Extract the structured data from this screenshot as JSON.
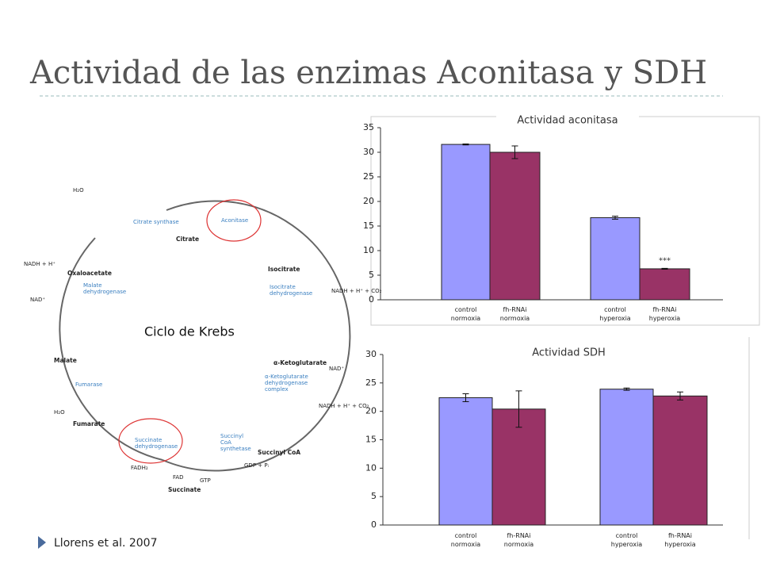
{
  "title": "Actividad de las enzimas Aconitasa y SDH",
  "citation": "Llorens et al. 2007",
  "diagram": {
    "title": "Ciclo de Krebs",
    "metabolites": [
      "Citrate",
      "Isocitrate",
      "α-Ketoglutarate",
      "Succinyl CoA",
      "Succinate",
      "Fumarate",
      "Malate",
      "Oxaloacetate"
    ],
    "enzymes": [
      "Citrate synthase",
      "Aconitase",
      "Isocitrate dehydrogenase",
      "α-Ketoglutarate dehydrogenase complex",
      "Succinyl CoA synthetase",
      "Succinate dehydrogenase",
      "Fumarase",
      "Malate dehydrogenase"
    ],
    "cofactors": [
      "NADH + H⁺",
      "NAD⁺",
      "NADH + H⁺ + CO₂",
      "NAD⁺",
      "NADH + H⁺ + CO₂",
      "GTP",
      "GDP + Pᵢ",
      "FADH₂",
      "FAD",
      "H₂O",
      "H₂O"
    ]
  },
  "chart_data": [
    {
      "type": "bar",
      "title": "Actividad aconitasa",
      "categories": [
        "control normoxia",
        "fh-RNAi normoxia",
        "control hyperoxia",
        "fh-RNAi hyperoxia"
      ],
      "values": [
        31.6,
        30,
        16.7,
        6.3
      ],
      "errors": [
        0.1,
        1.3,
        0.3,
        0.1
      ],
      "colors": [
        "#9999ff",
        "#993366",
        "#9999ff",
        "#993366"
      ],
      "ylim": [
        0,
        35
      ],
      "yticks": [
        0,
        5,
        10,
        15,
        20,
        25,
        30,
        35
      ],
      "annotation": "***"
    },
    {
      "type": "bar",
      "title": "Actividad SDH",
      "categories": [
        "control normoxia",
        "fh-RNAi normoxia",
        "control hyperoxia",
        "fh-RNAi hyperoxia"
      ],
      "values": [
        22.4,
        20.4,
        23.9,
        22.7
      ],
      "errors": [
        0.7,
        3.2,
        0.2,
        0.7
      ],
      "colors": [
        "#9999ff",
        "#993366",
        "#9999ff",
        "#993366"
      ],
      "ylim": [
        0,
        30
      ],
      "yticks": [
        0,
        5,
        10,
        15,
        20,
        25,
        30
      ]
    }
  ]
}
